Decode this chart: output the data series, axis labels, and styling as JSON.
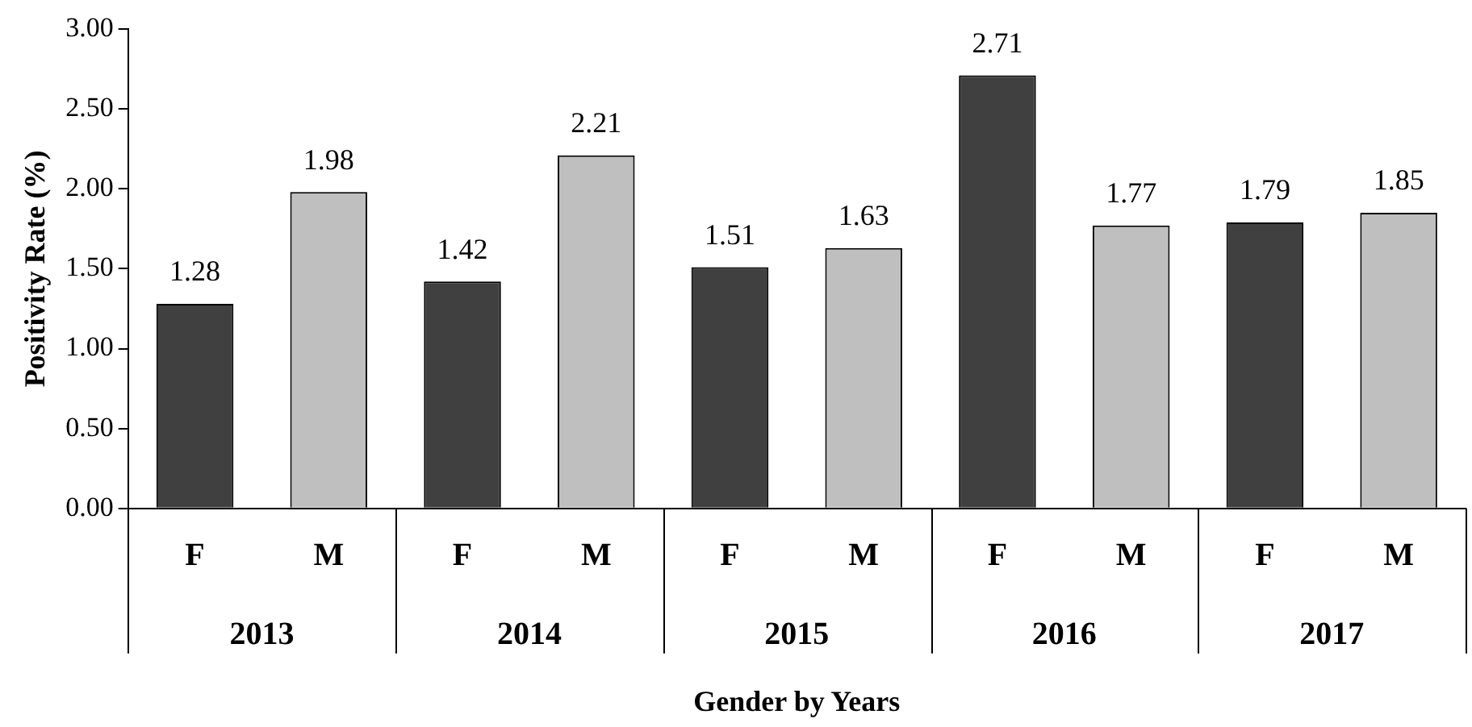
{
  "chart_data": {
    "type": "bar",
    "xlabel": "Gender by Years",
    "ylabel": "Positivity Rate (%)",
    "categories": [
      "F",
      "M",
      "F",
      "M",
      "F",
      "M",
      "F",
      "M",
      "F",
      "M"
    ],
    "values": [
      1.28,
      1.98,
      1.42,
      2.21,
      1.51,
      1.63,
      2.71,
      1.77,
      1.79,
      1.85
    ],
    "colors": [
      "#404040",
      "#bfbfbf",
      "#404040",
      "#bfbfbf",
      "#404040",
      "#bfbfbf",
      "#404040",
      "#bfbfbf",
      "#404040",
      "#bfbfbf"
    ],
    "annotations": [
      "2013",
      "2014",
      "2015",
      "2016",
      "2017"
    ],
    "ylim": [
      0,
      3
    ],
    "yticks": [
      {
        "value": 0,
        "label": "0.00"
      },
      {
        "value": 0.5,
        "label": "0.50"
      },
      {
        "value": 1,
        "label": "1.00"
      },
      {
        "value": 1.5,
        "label": "1.50"
      },
      {
        "value": 2,
        "label": "2.00"
      },
      {
        "value": 2.5,
        "label": "2.50"
      },
      {
        "value": 3,
        "label": "3.00"
      }
    ],
    "data_labels": true,
    "grid": false,
    "legend": false
  }
}
